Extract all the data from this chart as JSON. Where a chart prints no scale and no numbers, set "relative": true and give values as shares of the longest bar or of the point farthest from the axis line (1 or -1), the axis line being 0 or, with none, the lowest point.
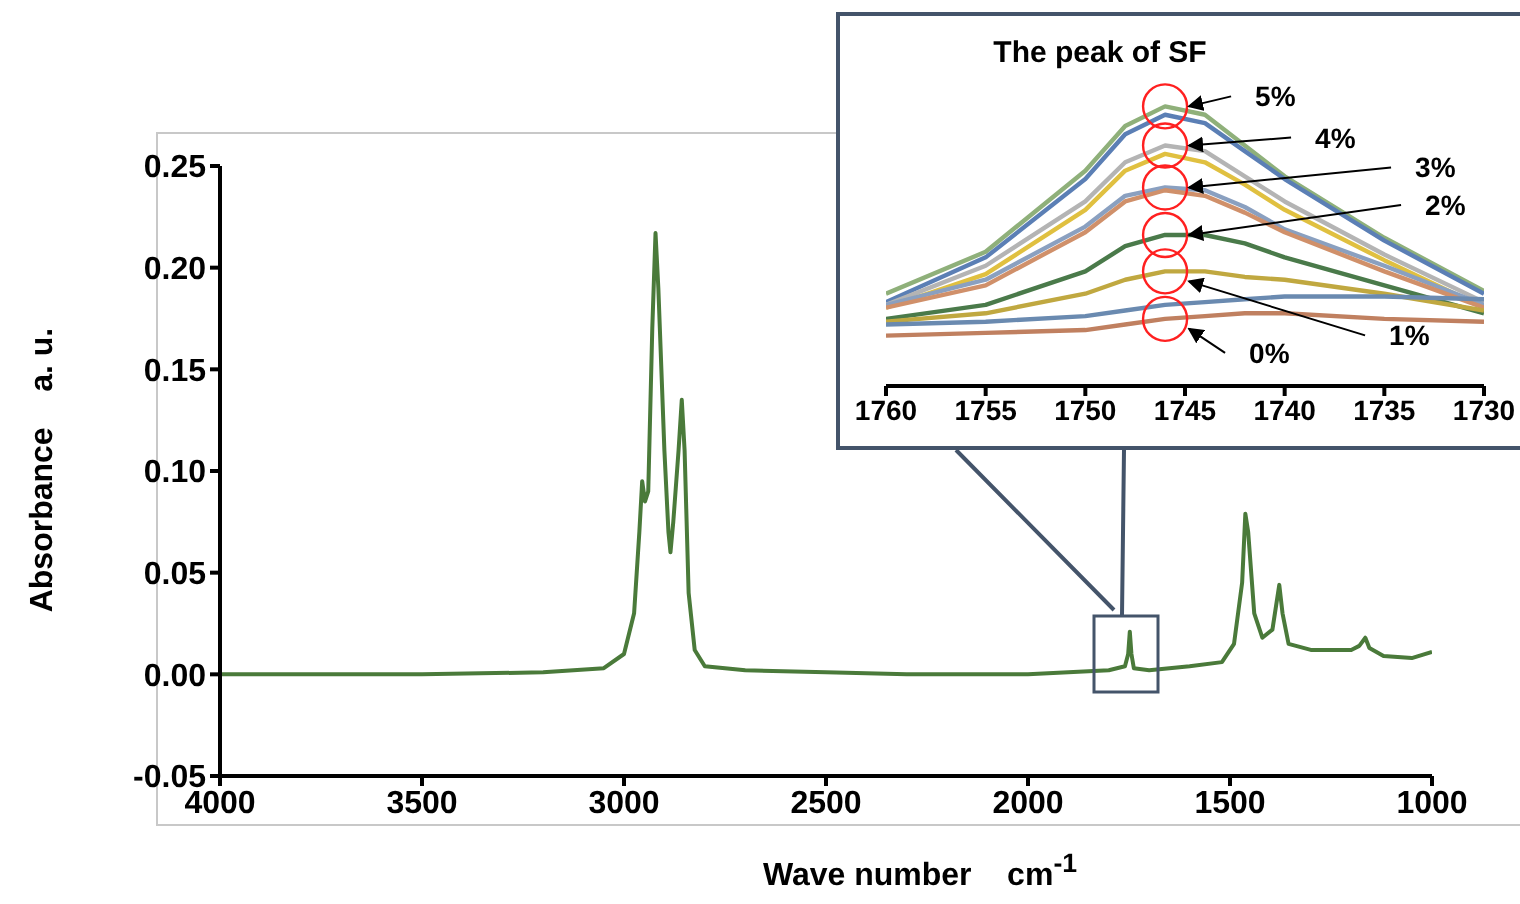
{
  "chart_data": [
    {
      "type": "line",
      "xlabel": "Wave number    cm$^{-1}$",
      "ylabel": "Absorbance    a. u.",
      "x": [
        4000,
        3800,
        3500,
        3200,
        3050,
        3000,
        2975,
        2962,
        2955,
        2948,
        2940,
        2930,
        2922,
        2915,
        2900,
        2890,
        2885,
        2878,
        2865,
        2857,
        2850,
        2840,
        2825,
        2800,
        2700,
        2500,
        2300,
        2000,
        1800,
        1760,
        1752,
        1748,
        1744,
        1738,
        1700,
        1600,
        1520,
        1490,
        1470,
        1462,
        1455,
        1440,
        1420,
        1395,
        1378,
        1370,
        1355,
        1300,
        1250,
        1200,
        1180,
        1165,
        1155,
        1120,
        1050,
        1000
      ],
      "series": [
        {
          "color": "#4a7a3a",
          "values": [
            0,
            0,
            0,
            0.001,
            0.003,
            0.01,
            0.03,
            0.07,
            0.095,
            0.085,
            0.09,
            0.17,
            0.217,
            0.19,
            0.11,
            0.07,
            0.06,
            0.075,
            0.11,
            0.135,
            0.11,
            0.04,
            0.012,
            0.004,
            0.002,
            0.001,
            0,
            0,
            0.002,
            0.004,
            0.01,
            0.021,
            0.01,
            0.003,
            0.002,
            0.004,
            0.006,
            0.015,
            0.045,
            0.079,
            0.07,
            0.03,
            0.018,
            0.022,
            0.044,
            0.03,
            0.015,
            0.012,
            0.012,
            0.012,
            0.014,
            0.018,
            0.013,
            0.009,
            0.008,
            0.011
          ]
        }
      ],
      "xlim": [
        4000,
        1000
      ],
      "xticks": [
        4000,
        3500,
        3000,
        2500,
        2000,
        1500,
        1000
      ],
      "ylim": [
        -0.05,
        0.25
      ],
      "yticks": [
        {
          "value": -0.05,
          "label": "-0.05"
        },
        {
          "value": 0,
          "label": "0.00"
        },
        {
          "value": 0.05,
          "label": "0.05"
        },
        {
          "value": 0.1,
          "label": "0.10"
        },
        {
          "value": 0.15,
          "label": "0.15"
        },
        {
          "value": 0.2,
          "label": "0.20"
        },
        {
          "value": 0.25,
          "label": "0.25"
        }
      ]
    },
    {
      "type": "line",
      "title": "The peak of SF",
      "relative": true,
      "tick_labels": "x",
      "x": [
        1760,
        1755,
        1750,
        1748,
        1746,
        1744,
        1742,
        1740,
        1735,
        1730
      ],
      "series": [
        {
          "color": "#8fb07a",
          "values": [
            0.33,
            0.48,
            0.77,
            0.93,
            1.0,
            0.97,
            0.86,
            0.75,
            0.53,
            0.34
          ]
        },
        {
          "color": "#5b7fb5",
          "values": [
            0.3,
            0.46,
            0.74,
            0.9,
            0.97,
            0.94,
            0.84,
            0.74,
            0.52,
            0.33
          ]
        },
        {
          "color": "#b4b4b4",
          "values": [
            0.29,
            0.43,
            0.66,
            0.8,
            0.86,
            0.84,
            0.75,
            0.66,
            0.47,
            0.3
          ]
        },
        {
          "color": "#e0c040",
          "values": [
            0.28,
            0.4,
            0.63,
            0.77,
            0.83,
            0.8,
            0.72,
            0.63,
            0.45,
            0.28
          ]
        },
        {
          "color": "#8aa0c0",
          "values": [
            0.29,
            0.38,
            0.57,
            0.68,
            0.71,
            0.7,
            0.64,
            0.56,
            0.43,
            0.29
          ]
        },
        {
          "color": "#d0906a",
          "values": [
            0.28,
            0.36,
            0.55,
            0.66,
            0.7,
            0.68,
            0.62,
            0.55,
            0.41,
            0.28
          ]
        },
        {
          "color": "#4a7a4a",
          "values": [
            0.24,
            0.29,
            0.41,
            0.5,
            0.54,
            0.54,
            0.51,
            0.46,
            0.36,
            0.26
          ]
        },
        {
          "color": "#c0a840",
          "values": [
            0.23,
            0.26,
            0.33,
            0.38,
            0.41,
            0.41,
            0.39,
            0.38,
            0.33,
            0.27
          ]
        },
        {
          "color": "#6a8ab0",
          "values": [
            0.22,
            0.23,
            0.25,
            0.27,
            0.29,
            0.3,
            0.31,
            0.32,
            0.32,
            0.31
          ]
        },
        {
          "color": "#c08060",
          "values": [
            0.18,
            0.19,
            0.2,
            0.22,
            0.24,
            0.25,
            0.26,
            0.26,
            0.24,
            0.23
          ]
        }
      ],
      "annotations": [
        "5%",
        "4%",
        "3%",
        "2%",
        "1%",
        "0%"
      ],
      "xlim": [
        1760,
        1730
      ],
      "xticks": [
        1760,
        1755,
        1750,
        1745,
        1740,
        1735,
        1730
      ]
    }
  ]
}
